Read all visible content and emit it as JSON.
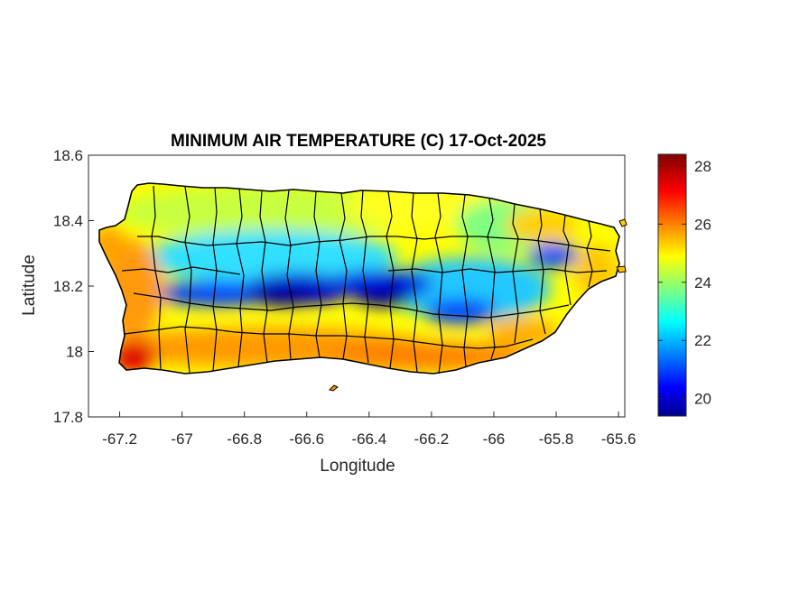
{
  "chart_data": {
    "type": "heatmap",
    "title": "MINIMUM AIR TEMPERATURE (C) 17-Oct-2025",
    "xlabel": "Longitude",
    "ylabel": "Latitude",
    "xlim": [
      -67.3,
      -65.58
    ],
    "ylim": [
      17.8,
      18.6
    ],
    "x_ticks": [
      "-67.2",
      "-67",
      "-66.8",
      "-66.6",
      "-66.4",
      "-66.2",
      "-66",
      "-65.8",
      "-65.6"
    ],
    "y_ticks": [
      "17.8",
      "18",
      "18.2",
      "18.4",
      "18.6"
    ],
    "colorbar": {
      "colormap": "jet",
      "range": [
        19.4,
        28.4
      ],
      "ticks": [
        "20",
        "22",
        "24",
        "26",
        "28"
      ],
      "colors": [
        "#00008f",
        "#0000ff",
        "#0080ff",
        "#00ffff",
        "#80ff80",
        "#ffff00",
        "#ff8000",
        "#ff0000",
        "#800000"
      ]
    },
    "region": "Puerto Rico",
    "pattern": {
      "coldest_band": {
        "lat": 18.19,
        "lon_range": [
          -67.05,
          -66.0
        ],
        "value": 20.0
      },
      "east_cold_spot": {
        "lat": 18.28,
        "lon": -65.81,
        "value": 20.5
      },
      "south_coast": {
        "value": 26.5
      },
      "southwest_corner": {
        "lon": -67.18,
        "lat": 17.98,
        "value": 28.0
      },
      "north_coast": {
        "value": 24.5
      }
    }
  }
}
